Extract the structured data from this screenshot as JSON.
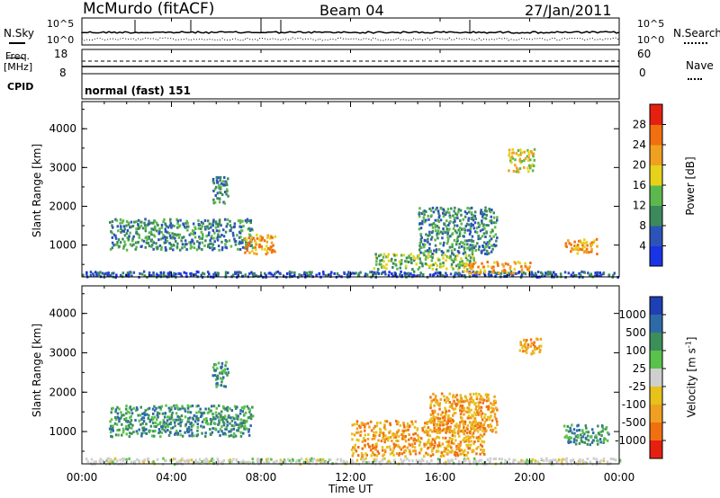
{
  "header": {
    "title": "McMurdo (fitACF)",
    "beam": "Beam 04",
    "date": "27/Jan/2011"
  },
  "top_panels": {
    "nsky_label": "N.Sky",
    "nsearch_label": "N.Search",
    "nsky_ticks": [
      "10^5",
      "10^0"
    ],
    "nsearch_ticks": [
      "10^5",
      "10^0"
    ],
    "freq_label_line1": "Freq.",
    "freq_label_line2": "[MHz]",
    "freq_ticks": [
      "18",
      "8"
    ],
    "nave_label": "Nave",
    "nave_ticks": [
      "60",
      "0"
    ],
    "cpid_label": "CPID",
    "cpid_value": "normal (fast) 151"
  },
  "colors": {
    "power_scale": [
      "#1a33e6",
      "#2c54b8",
      "#3c8a5c",
      "#5cb84c",
      "#e6d21a",
      "#f0a020",
      "#f07010",
      "#e62010"
    ],
    "velocity_scale": [
      "#1f3fb5",
      "#2e6aa8",
      "#3d8f5a",
      "#59c24a",
      "#cfcfcf",
      "#e6c21a",
      "#f0a020",
      "#f07010",
      "#e62010"
    ]
  },
  "chart_data": [
    {
      "type": "heatmap",
      "title": "",
      "xlabel": "Time UT",
      "ylabel": "Slant Range [km]",
      "x_ticks": [
        "00:00",
        "04:00",
        "08:00",
        "12:00",
        "16:00",
        "20:00",
        "00:00"
      ],
      "y_ticks": [
        "1000",
        "2000",
        "3000",
        "4000"
      ],
      "ylim": [
        180,
        4700
      ],
      "colorbar_label": "Power [dB]",
      "colorbar_ticks": [
        "4",
        "8",
        "12",
        "16",
        "20",
        "24",
        "28"
      ],
      "colorbar_range": [
        0,
        32
      ],
      "features": [
        {
          "t_start": 0.0,
          "t_end": 24.0,
          "range_min": 200,
          "range_max": 350,
          "level": 6
        },
        {
          "t_start": 1.2,
          "t_end": 7.6,
          "range_min": 900,
          "range_max": 1700,
          "level": 10
        },
        {
          "t_start": 5.8,
          "t_end": 6.5,
          "range_min": 2100,
          "range_max": 2800,
          "level": 10
        },
        {
          "t_start": 7.2,
          "t_end": 8.6,
          "range_min": 800,
          "range_max": 1300,
          "level": 24
        },
        {
          "t_start": 13.0,
          "t_end": 17.5,
          "range_min": 400,
          "range_max": 800,
          "level": 14
        },
        {
          "t_start": 15.0,
          "t_end": 18.5,
          "range_min": 800,
          "range_max": 2000,
          "level": 10
        },
        {
          "t_start": 17.0,
          "t_end": 20.0,
          "range_min": 300,
          "range_max": 600,
          "level": 24
        },
        {
          "t_start": 19.0,
          "t_end": 20.2,
          "range_min": 2900,
          "range_max": 3500,
          "level": 20
        },
        {
          "t_start": 21.5,
          "t_end": 23.0,
          "range_min": 800,
          "range_max": 1200,
          "level": 24
        }
      ]
    },
    {
      "type": "heatmap",
      "title": "",
      "xlabel": "Time UT",
      "ylabel": "Slant Range [km]",
      "x_ticks": [
        "00:00",
        "04:00",
        "08:00",
        "12:00",
        "16:00",
        "20:00",
        "00:00"
      ],
      "y_ticks": [
        "1000",
        "2000",
        "3000",
        "4000"
      ],
      "ylim": [
        180,
        4700
      ],
      "colorbar_label": "Velocity [m s^-1]",
      "colorbar_ticks": [
        "1000",
        "500",
        "100",
        "25",
        "-25",
        "-100",
        "-500",
        "-1000"
      ],
      "features": [
        {
          "t_start": 0.0,
          "t_end": 24.0,
          "range_min": 200,
          "range_max": 350,
          "velocity": 0
        },
        {
          "t_start": 1.2,
          "t_end": 7.6,
          "range_min": 900,
          "range_max": 1700,
          "velocity": 250
        },
        {
          "t_start": 5.8,
          "t_end": 6.5,
          "range_min": 2100,
          "range_max": 2800,
          "velocity": 250
        },
        {
          "t_start": 12.0,
          "t_end": 18.0,
          "range_min": 400,
          "range_max": 1300,
          "velocity": -200
        },
        {
          "t_start": 15.5,
          "t_end": 18.5,
          "range_min": 1000,
          "range_max": 2000,
          "velocity": -200
        },
        {
          "t_start": 19.5,
          "t_end": 20.5,
          "range_min": 3000,
          "range_max": 3400,
          "velocity": -200
        },
        {
          "t_start": 21.5,
          "t_end": 23.5,
          "range_min": 700,
          "range_max": 1200,
          "velocity": 150
        }
      ]
    }
  ]
}
